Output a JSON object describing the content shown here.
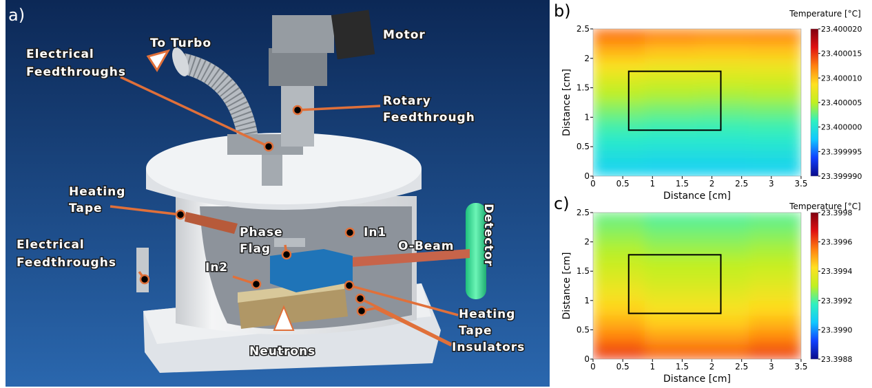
{
  "panel_a": {
    "panel": "a)",
    "to_turbo": "To Turbo",
    "feedthroughs_top": [
      "Electrical",
      "Feedthroughs"
    ],
    "motor": "Motor",
    "rotary": [
      "Rotary",
      "Feedthrough"
    ],
    "heating_tape_left": [
      "Heating",
      "Tape"
    ],
    "phase_flag": [
      "Phase",
      "Flag"
    ],
    "in1": "In1",
    "o_beam": "O-Beam",
    "detector": "Detector",
    "feedthroughs_side": [
      "Electrical",
      "Feedthroughs"
    ],
    "in2": "In2",
    "heating_tape_right": [
      "Heating",
      "Tape"
    ],
    "insulators": "Insulators",
    "neutrons": "Neutrons"
  },
  "chart_data": [
    {
      "type": "heatmap",
      "panel": "b)",
      "colorbar_label": "Temperature [°C]",
      "xlabel": "Distance [cm]",
      "ylabel": "Distance [cm]",
      "x": [
        0.4375,
        1.3125,
        2.1875,
        3.0625
      ],
      "y": [
        0.125,
        0.375,
        0.625,
        0.875,
        1.125,
        1.375,
        1.625,
        1.875,
        2.125,
        2.375
      ],
      "z": [
        [
          23.3999986,
          23.3999984,
          23.3999984,
          23.3999985
        ],
        [
          23.3999996,
          23.3999994,
          23.3999994,
          23.3999995
        ],
        [
          23.4000007,
          23.4000005,
          23.4000005,
          23.4000006
        ],
        [
          23.4000019,
          23.4000017,
          23.4000016,
          23.4000017
        ],
        [
          23.4000033,
          23.400003,
          23.4000029,
          23.400003
        ],
        [
          23.4000048,
          23.4000045,
          23.4000044,
          23.4000045
        ],
        [
          23.4000065,
          23.4000061,
          23.400006,
          23.4000061
        ],
        [
          23.4000084,
          23.4000079,
          23.4000077,
          23.4000078
        ],
        [
          23.4000105,
          23.4000099,
          23.4000097,
          23.4000098
        ],
        [
          23.4000128,
          23.4000121,
          23.4000118,
          23.4000119
        ]
      ],
      "xlim": [
        0,
        3.5
      ],
      "xticks": [
        0,
        0.5,
        1,
        1.5,
        2,
        2.5,
        3,
        3.5
      ],
      "ylim": [
        0,
        2.5
      ],
      "yticks": [
        0,
        0.5,
        1,
        1.5,
        2,
        2.5
      ],
      "zlim": [
        23.39999,
        23.40002
      ],
      "zticks": [
        {
          "value": 23.39999,
          "label": "23.399990"
        },
        23.399995,
        {
          "value": 23.4,
          "label": "23.400000"
        },
        23.400005,
        {
          "value": 23.40001,
          "label": "23.400010"
        },
        23.400015,
        {
          "value": 23.40002,
          "label": "23.400020"
        }
      ],
      "colorscale": [
        "#0a0a8a",
        "#1040ff",
        "#10c8ff",
        "#30f0c0",
        "#c0f020",
        "#ffe020",
        "#ff8010",
        "#e01010",
        "#800010"
      ],
      "box": {
        "x": [
          0.6,
          2.15
        ],
        "y": [
          0.78,
          1.78
        ]
      },
      "box_color": "#000000"
    },
    {
      "type": "heatmap",
      "panel": "c)",
      "colorbar_label": "Temperature [°C]",
      "xlabel": "Distance [cm]",
      "ylabel": "Distance [cm]",
      "x": [
        0.4375,
        1.3125,
        2.1875,
        3.0625
      ],
      "y": [
        0.125,
        0.375,
        0.625,
        0.875,
        1.125,
        1.375,
        1.625,
        1.875,
        2.125,
        2.375
      ],
      "z": [
        [
          23.39962,
          23.39958,
          23.39958,
          23.39961
        ],
        [
          23.39955,
          23.39951,
          23.39951,
          23.39954
        ],
        [
          23.39949,
          23.39945,
          23.39945,
          23.39948
        ],
        [
          23.39944,
          23.39941,
          23.39941,
          23.39943
        ],
        [
          23.3994,
          23.39937,
          23.39937,
          23.39939
        ],
        [
          23.39936,
          23.39933,
          23.39933,
          23.39935
        ],
        [
          23.39932,
          23.3993,
          23.3993,
          23.39931
        ],
        [
          23.39929,
          23.39927,
          23.39927,
          23.39928
        ],
        [
          23.39926,
          23.39924,
          23.39924,
          23.39925
        ],
        [
          23.39923,
          23.39921,
          23.39921,
          23.39922
        ]
      ],
      "xlim": [
        0,
        3.5
      ],
      "xticks": [
        0,
        0.5,
        1,
        1.5,
        2,
        2.5,
        3,
        3.5
      ],
      "ylim": [
        0,
        2.5
      ],
      "yticks": [
        0,
        0.5,
        1,
        1.5,
        2,
        2.5
      ],
      "zlim": [
        23.3988,
        23.3998
      ],
      "zticks": [
        23.3988,
        {
          "value": 23.399,
          "label": "23.3990"
        },
        23.3992,
        23.3994,
        23.3996,
        23.3998
      ],
      "colorscale": [
        "#0a0a8a",
        "#1040ff",
        "#10c8ff",
        "#30f0c0",
        "#c0f020",
        "#ffe020",
        "#ff8010",
        "#e01010",
        "#800010"
      ],
      "box": {
        "x": [
          0.6,
          2.15
        ],
        "y": [
          0.78,
          1.78
        ]
      },
      "box_color": "#000000"
    }
  ]
}
